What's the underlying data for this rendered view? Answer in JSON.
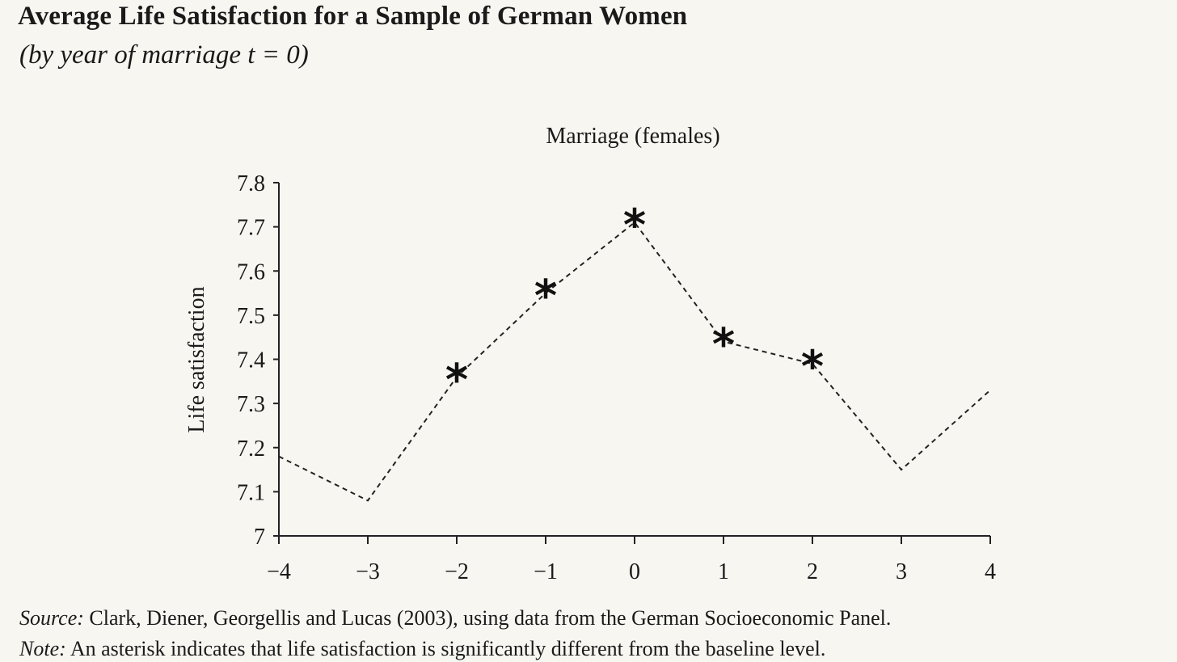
{
  "figure": {
    "title": "Average Life Satisfaction for a Sample of German Women",
    "subtitle": "(by year of marriage t = 0)",
    "source_label": "Source:",
    "source_text": " Clark, Diener, Georgellis and Lucas (2003), using data from the German Socioeconomic Panel.",
    "note_label": "Note:",
    "note_text": " An asterisk indicates that life satisfaction is significantly different from the baseline level."
  },
  "chart_data": {
    "type": "line",
    "title": "Marriage (females)",
    "xlabel": "",
    "ylabel": "Life satisfaction",
    "x": [
      -4,
      -3,
      -2,
      -1,
      0,
      1,
      2,
      3,
      4
    ],
    "x_tick_labels": [
      "−4",
      "−3",
      "−2",
      "−1",
      "0",
      "1",
      "2",
      "3",
      "4"
    ],
    "y_ticks": [
      7,
      7.1,
      7.2,
      7.3,
      7.4,
      7.5,
      7.6,
      7.7,
      7.8
    ],
    "y_tick_labels": [
      "7",
      "7.1",
      "7.2",
      "7.3",
      "7.4",
      "7.5",
      "7.6",
      "7.7",
      "7.8"
    ],
    "xlim": [
      -4,
      4
    ],
    "ylim": [
      7,
      7.8
    ],
    "series": [
      {
        "values": [
          7.18,
          7.08,
          7.36,
          7.55,
          7.71,
          7.44,
          7.39,
          7.15,
          7.33
        ],
        "significant": [
          false,
          false,
          true,
          true,
          true,
          true,
          true,
          false,
          false
        ],
        "line_style": "dashed"
      }
    ],
    "marker_symbol": "*",
    "grid": false,
    "legend": "none",
    "line_color": "#222222"
  }
}
